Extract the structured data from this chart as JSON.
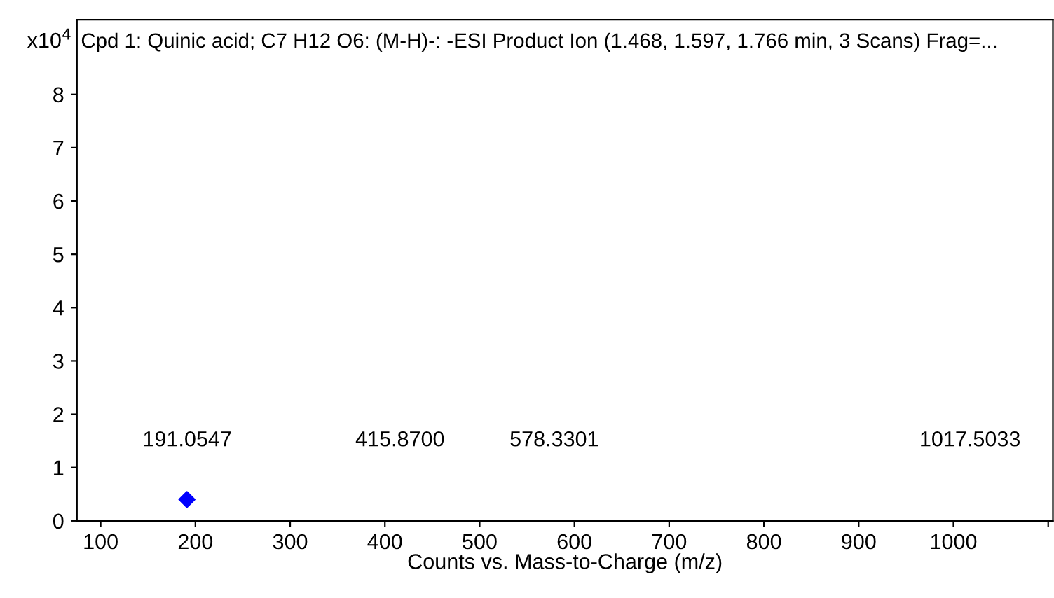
{
  "chart_data": {
    "type": "scatter",
    "title": "Cpd 1: Quinic acid; C7 H12 O6: (M-H)-: -ESI Product Ion (1.468, 1.597, 1.766 min, 3 Scans) Frag=...",
    "xlabel": "Counts vs. Mass-to-Charge (m/z)",
    "ylabel": "x10$^{4}$",
    "x": [
      191.0547
    ],
    "series": [
      {
        "color": "#0000ff",
        "values": [
          0.4
        ]
      }
    ],
    "marker": "diamond",
    "annotations": [
      "191.0547",
      "415.8700",
      "578.3301",
      "1017.5033"
    ],
    "xlim": [
      75,
      1105
    ],
    "xticks": [
      100,
      200,
      300,
      400,
      500,
      600,
      700,
      800,
      900,
      1000,
      {
        "value": 1100,
        "label": null
      }
    ],
    "ylim": [
      0,
      9.4
    ],
    "yticks": [
      0,
      1,
      2,
      3,
      4,
      5,
      6,
      7,
      8
    ],
    "grid": false
  }
}
